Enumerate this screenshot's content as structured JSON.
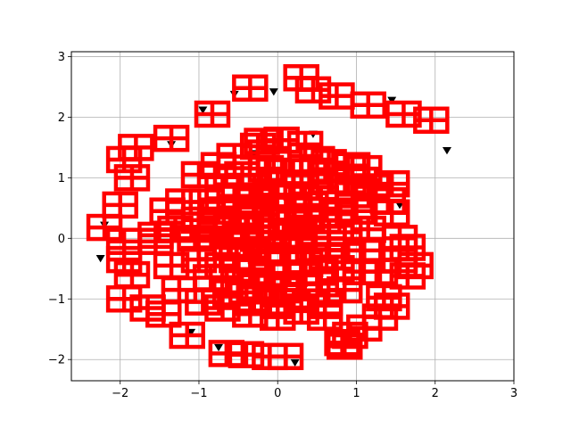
{
  "chart_data": {
    "type": "scatter",
    "title": "",
    "xlabel": "",
    "ylabel": "",
    "xlim": [
      -2.62,
      3.0
    ],
    "ylim": [
      -2.35,
      3.08
    ],
    "grid": true,
    "x_ticks": [
      {
        "value": -2,
        "label": "−2"
      },
      {
        "value": -1,
        "label": "−1"
      },
      {
        "value": 0,
        "label": "0"
      },
      {
        "value": 1,
        "label": "1"
      },
      {
        "value": 2,
        "label": "2"
      },
      {
        "value": 3,
        "label": "3"
      }
    ],
    "y_ticks": [
      {
        "value": -2,
        "label": "−2"
      },
      {
        "value": -1,
        "label": "−1"
      },
      {
        "value": 0,
        "label": "0"
      },
      {
        "value": 1,
        "label": "1"
      },
      {
        "value": 2,
        "label": "2"
      },
      {
        "value": 3,
        "label": "3"
      }
    ],
    "series": [
      {
        "marker": "triangle-down",
        "color": "#000000",
        "points": [
          [
            -0.55,
            2.38
          ],
          [
            -0.05,
            2.42
          ],
          [
            -0.95,
            2.12
          ],
          [
            1.45,
            2.28
          ],
          [
            2.15,
            1.45
          ],
          [
            -2.2,
            0.22
          ],
          [
            -2.25,
            -0.33
          ],
          [
            -1.1,
            -1.55
          ],
          [
            -0.75,
            -1.8
          ],
          [
            0.22,
            -2.05
          ],
          [
            1.35,
            -0.98
          ],
          [
            1.55,
            0.55
          ],
          [
            -1.35,
            1.55
          ],
          [
            0.45,
            1.72
          ],
          [
            -0.3,
            1.4
          ]
        ]
      },
      {
        "marker": "hatched-square",
        "color": "#ff0000",
        "points": [
          [
            0.3,
            2.65
          ],
          [
            -0.35,
            2.48
          ],
          [
            0.45,
            2.45
          ],
          [
            0.75,
            2.35
          ],
          [
            1.15,
            2.2
          ],
          [
            1.6,
            2.05
          ],
          [
            1.95,
            1.95
          ],
          [
            -0.83,
            2.05
          ],
          [
            -1.35,
            1.65
          ],
          [
            -1.8,
            1.5
          ],
          [
            -1.95,
            1.3
          ],
          [
            -1.85,
            1.0
          ],
          [
            -2.0,
            0.55
          ],
          [
            -2.2,
            0.18
          ],
          [
            -1.95,
            -0.05
          ],
          [
            -1.95,
            -0.35
          ],
          [
            -1.85,
            -0.6
          ],
          [
            -1.95,
            -1.0
          ],
          [
            -1.65,
            -1.15
          ],
          [
            -1.45,
            -1.25
          ],
          [
            -1.15,
            -1.6
          ],
          [
            -0.65,
            -1.9
          ],
          [
            -0.4,
            -1.92
          ],
          [
            -0.1,
            -1.95
          ],
          [
            0.1,
            -1.95
          ],
          [
            0.85,
            -1.78
          ],
          [
            0.82,
            -1.72
          ],
          [
            0.92,
            -1.6
          ],
          [
            1.1,
            -1.48
          ],
          [
            1.3,
            -1.3
          ],
          [
            1.45,
            -1.12
          ],
          [
            1.35,
            -0.98
          ],
          [
            1.65,
            -0.62
          ],
          [
            1.75,
            -0.45
          ],
          [
            1.55,
            -0.35
          ],
          [
            1.65,
            -0.15
          ],
          [
            1.55,
            0.0
          ],
          [
            1.45,
            0.42
          ],
          [
            1.4,
            0.62
          ],
          [
            1.45,
            0.9
          ],
          [
            1.1,
            1.15
          ],
          [
            0.95,
            1.2
          ],
          [
            0.65,
            1.25
          ],
          [
            0.35,
            1.55
          ],
          [
            0.05,
            1.62
          ],
          [
            -0.25,
            1.52
          ],
          [
            -0.55,
            1.35
          ],
          [
            -0.75,
            1.2
          ],
          [
            -1.0,
            1.05
          ],
          [
            -1.2,
            0.6
          ],
          [
            -1.4,
            0.45
          ],
          [
            -1.3,
            0.15
          ],
          [
            -1.35,
            -0.45
          ],
          [
            -1.25,
            -0.85
          ],
          [
            -0.95,
            -1.05
          ],
          [
            -0.7,
            -1.15
          ],
          [
            -0.35,
            -1.25
          ],
          [
            0.0,
            -1.3
          ],
          [
            0.3,
            -1.2
          ],
          [
            0.6,
            -1.05
          ],
          [
            0.85,
            -0.85
          ],
          [
            1.05,
            -0.55
          ],
          [
            1.1,
            -0.2
          ],
          [
            1.15,
            0.15
          ],
          [
            1.0,
            0.45
          ],
          [
            0.95,
            0.72
          ],
          [
            0.65,
            0.95
          ],
          [
            0.4,
            1.1
          ],
          [
            0.1,
            1.1
          ],
          [
            -0.15,
            1.15
          ],
          [
            -0.45,
            1.05
          ],
          [
            -0.7,
            0.85
          ],
          [
            -0.9,
            0.6
          ],
          [
            -1.0,
            0.3
          ],
          [
            -1.05,
            0.0
          ],
          [
            -1.0,
            -0.35
          ],
          [
            -0.85,
            -0.65
          ],
          [
            -0.6,
            -0.9
          ],
          [
            -0.3,
            -1.0
          ],
          [
            0.0,
            -1.05
          ],
          [
            0.3,
            -0.95
          ],
          [
            0.55,
            -0.75
          ],
          [
            0.75,
            -0.5
          ],
          [
            0.85,
            -0.2
          ],
          [
            0.85,
            0.1
          ],
          [
            0.75,
            0.4
          ],
          [
            0.55,
            0.65
          ],
          [
            0.3,
            0.85
          ],
          [
            0.0,
            0.9
          ],
          [
            -0.3,
            0.85
          ],
          [
            -0.55,
            0.7
          ],
          [
            -0.75,
            0.45
          ],
          [
            -0.8,
            0.15
          ],
          [
            -0.8,
            -0.15
          ],
          [
            -0.7,
            -0.45
          ],
          [
            -0.5,
            -0.7
          ],
          [
            -0.25,
            -0.8
          ],
          [
            0.05,
            -0.85
          ],
          [
            0.3,
            -0.75
          ],
          [
            0.5,
            -0.55
          ],
          [
            0.62,
            -0.3
          ],
          [
            0.65,
            0.0
          ],
          [
            0.58,
            0.3
          ],
          [
            0.42,
            0.55
          ],
          [
            0.2,
            0.68
          ],
          [
            -0.05,
            0.72
          ],
          [
            -0.3,
            0.62
          ],
          [
            -0.48,
            0.42
          ],
          [
            -0.58,
            0.18
          ],
          [
            -0.6,
            -0.1
          ],
          [
            -0.52,
            -0.35
          ],
          [
            -0.35,
            -0.55
          ],
          [
            -0.1,
            -0.62
          ],
          [
            0.15,
            -0.58
          ],
          [
            0.35,
            -0.42
          ],
          [
            0.45,
            -0.18
          ],
          [
            0.45,
            0.1
          ],
          [
            0.35,
            0.35
          ],
          [
            0.15,
            0.48
          ],
          [
            -0.1,
            0.5
          ],
          [
            -0.3,
            0.38
          ],
          [
            -0.4,
            0.15
          ],
          [
            -0.42,
            -0.1
          ],
          [
            -0.32,
            -0.32
          ],
          [
            -0.12,
            -0.42
          ],
          [
            0.1,
            -0.38
          ],
          [
            0.25,
            -0.2
          ],
          [
            0.28,
            0.05
          ],
          [
            0.2,
            0.25
          ],
          [
            0.0,
            0.3
          ],
          [
            -0.2,
            0.2
          ],
          [
            -0.25,
            0.0
          ],
          [
            -0.15,
            -0.2
          ],
          [
            0.05,
            -0.2
          ],
          [
            0.1,
            0.05
          ],
          [
            -0.05,
            0.1
          ],
          [
            0.5,
            1.3
          ],
          [
            -0.05,
            1.3
          ],
          [
            1.2,
            0.85
          ],
          [
            -1.55,
            -0.05
          ],
          [
            1.3,
            -0.55
          ],
          [
            -1.55,
            0.05
          ],
          [
            0.6,
            -1.3
          ],
          [
            -0.2,
            1.6
          ],
          [
            0.9,
            0.95
          ]
        ]
      }
    ]
  }
}
